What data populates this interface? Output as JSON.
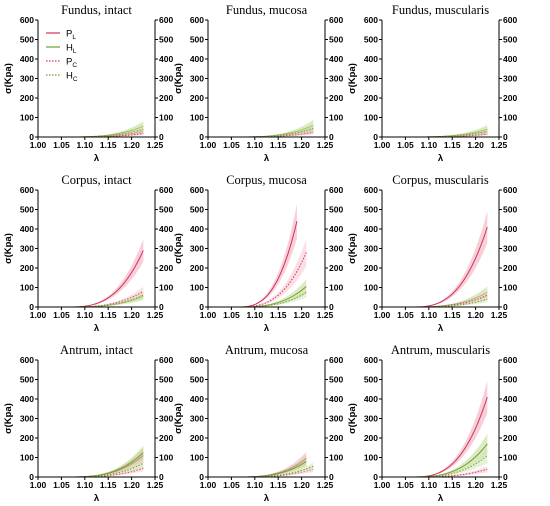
{
  "chart_data": {
    "type": "line",
    "layout": "3x3 grid of panels",
    "x_axis": {
      "label": "λ",
      "range": [
        1.0,
        1.25
      ],
      "ticks": [
        "1.00",
        "1.05",
        "1.10",
        "1.15",
        "1.20",
        "1.25"
      ]
    },
    "y_axis": {
      "left_label": "σ(Kpa)",
      "range": [
        0,
        600
      ],
      "ticks": [
        "0",
        "100",
        "200",
        "300",
        "400",
        "500",
        "600"
      ],
      "right_ticks": [
        "0",
        "100",
        "200",
        "300",
        "400",
        "500",
        "600"
      ]
    },
    "series_styles": [
      {
        "name": "P",
        "subscript": "L",
        "color": "#d6305a",
        "dash": "solid",
        "band": "#f1a7b8"
      },
      {
        "name": "H",
        "subscript": "L",
        "color": "#6f9e2c",
        "dash": "solid",
        "band": "#bcd98f"
      },
      {
        "name": "P",
        "subscript": "C",
        "color": "#d6305a",
        "dash": "dotted",
        "band": "#f6c7d2"
      },
      {
        "name": "H",
        "subscript": "C",
        "color": "#6f9e2c",
        "dash": "dotted",
        "band": "#d3e6b3"
      }
    ],
    "legend": {
      "placement": "top-left of first panel"
    },
    "panels": [
      {
        "title": "Fundus, intact",
        "end": [
          1.225,
          1.225,
          1.225,
          1.225
        ],
        "values": [
          28,
          55,
          18,
          40
        ],
        "spread": [
          0.5,
          0.45,
          0.5,
          0.45
        ]
      },
      {
        "title": "Fundus, mucosa",
        "end": [
          1.225,
          1.225,
          1.225,
          1.225
        ],
        "values": [
          35,
          60,
          25,
          45
        ],
        "spread": [
          0.5,
          0.45,
          0.5,
          0.45
        ]
      },
      {
        "title": "Fundus, muscularis",
        "end": [
          1.225,
          1.225,
          1.225,
          1.225
        ],
        "values": [
          22,
          40,
          15,
          30
        ],
        "spread": [
          0.5,
          0.5,
          0.5,
          0.5
        ]
      },
      {
        "title": "Corpus, intact",
        "end": [
          1.225,
          1.225,
          1.225,
          1.225
        ],
        "values": [
          290,
          55,
          80,
          60
        ],
        "spread": [
          0.2,
          0.35,
          0.3,
          0.3
        ]
      },
      {
        "title": "Corpus, mucosa",
        "end": [
          1.19,
          1.21,
          1.21,
          1.21
        ],
        "values": [
          440,
          105,
          280,
          75
        ],
        "spread": [
          0.2,
          0.35,
          0.25,
          0.35
        ]
      },
      {
        "title": "Corpus, muscularis",
        "end": [
          1.225,
          1.225,
          1.225,
          1.225
        ],
        "values": [
          410,
          75,
          60,
          40
        ],
        "spread": [
          0.2,
          0.4,
          0.4,
          0.4
        ]
      },
      {
        "title": "Antrum, intact",
        "end": [
          1.225,
          1.225,
          1.225,
          1.225
        ],
        "values": [
          110,
          125,
          45,
          70
        ],
        "spread": [
          0.35,
          0.3,
          0.35,
          0.35
        ]
      },
      {
        "title": "Antrum, mucosa",
        "end": [
          1.21,
          1.21,
          1.225,
          1.225
        ],
        "values": [
          95,
          80,
          40,
          55
        ],
        "spread": [
          0.35,
          0.35,
          0.35,
          0.35
        ]
      },
      {
        "title": "Antrum, muscularis",
        "end": [
          1.225,
          1.225,
          1.225,
          1.225
        ],
        "values": [
          410,
          170,
          40,
          110
        ],
        "spread": [
          0.2,
          0.3,
          0.4,
          0.35
        ]
      }
    ],
    "curve_exponent": 3
  }
}
